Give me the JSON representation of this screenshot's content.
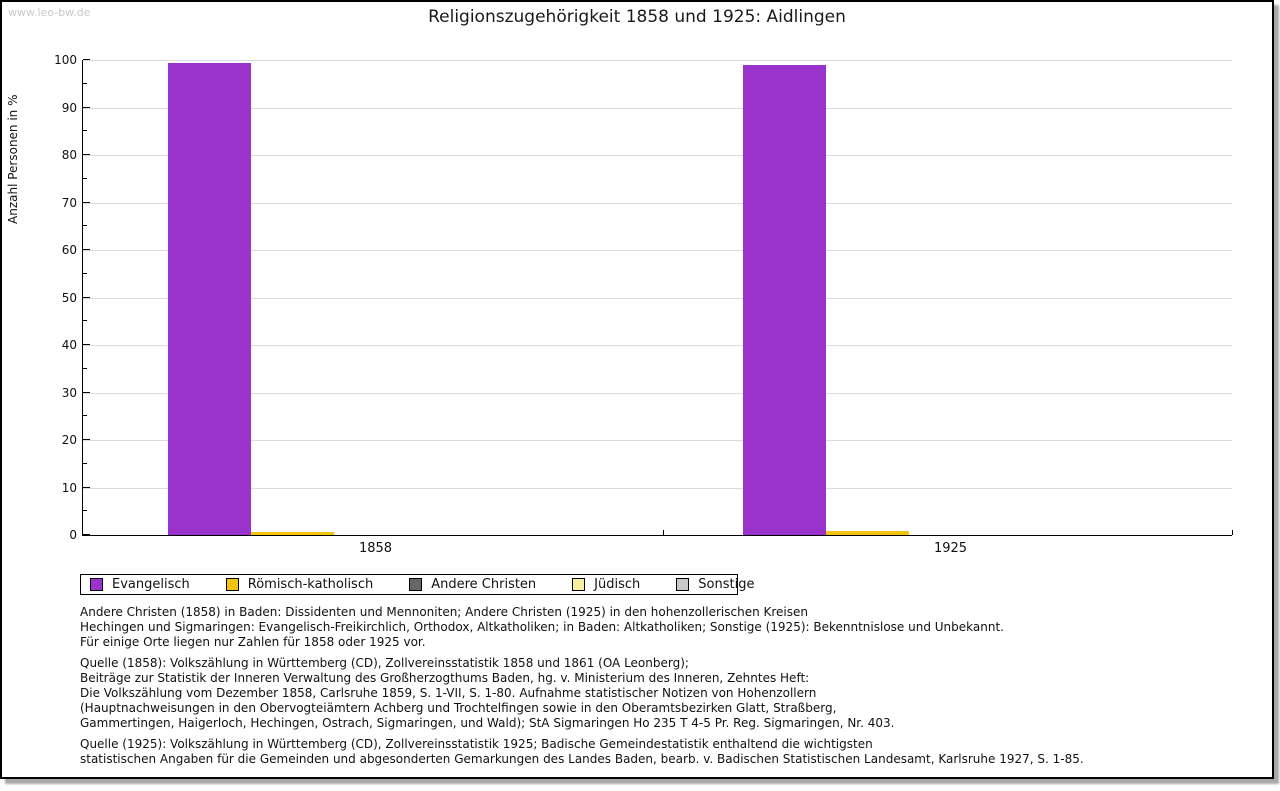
{
  "watermark": "www.leo-bw.de",
  "title": "Religionszugehörigkeit 1858 und 1925: Aidlingen",
  "chart_data": {
    "type": "bar",
    "title": "Religionszugehörigkeit 1858 und 1925: Aidlingen",
    "categories": [
      "1858",
      "1925"
    ],
    "series": [
      {
        "name": "Evangelisch",
        "color": "#9933cc",
        "values": [
          99.3,
          98.9
        ]
      },
      {
        "name": "Römisch-katholisch",
        "color": "#f2c40f",
        "values": [
          0.7,
          0.9
        ]
      },
      {
        "name": "Andere Christen",
        "color": "#666666",
        "values": [
          0,
          0
        ]
      },
      {
        "name": "Jüdisch",
        "color": "#f8f0a0",
        "values": [
          0,
          0
        ]
      },
      {
        "name": "Sonstige",
        "color": "#c8c8c8",
        "values": [
          0,
          0
        ]
      }
    ],
    "xlabel": "",
    "ylabel": "Anzahl Personen in %",
    "ylim": [
      0,
      100
    ],
    "ytick_step": 10,
    "ytick_minor_step": 5,
    "grid": true,
    "legend_position": "bottom-left"
  },
  "footnotes": {
    "note": "Andere Christen (1858) in Baden: Dissidenten und Mennoniten; Andere Christen (1925) in den hohenzollerischen Kreisen\nHechingen und Sigmaringen: Evangelisch-Freikirchlich, Orthodox, Altkatholiken; in Baden: Altkatholiken; Sonstige (1925): Bekenntnislose und Unbekannt.\nFür einige Orte liegen nur Zahlen für 1858 oder 1925 vor.",
    "source_1858": "Quelle (1858): Volkszählung in Württemberg (CD), Zollvereinsstatistik 1858 und 1861 (OA Leonberg);\nBeiträge zur Statistik der Inneren Verwaltung des Großherzogthums Baden, hg. v. Ministerium des Inneren, Zehntes Heft:\nDie Volkszählung vom Dezember 1858, Carlsruhe 1859, S. 1-VII, S. 1-80. Aufnahme statistischer Notizen von Hohenzollern\n(Hauptnachweisungen in den Obervogteiämtern Achberg und Trochtelfingen sowie in den Oberamtsbezirken Glatt, Straßberg,\nGammertingen, Haigerloch, Hechingen, Ostrach, Sigmaringen, und Wald); StA Sigmaringen Ho 235 T 4-5 Pr. Reg. Sigmaringen, Nr. 403.",
    "source_1925": "Quelle (1925): Volkszählung in Württemberg (CD), Zollvereinsstatistik 1925; Badische Gemeindestatistik enthaltend die wichtigsten\nstatistischen Angaben für die Gemeinden und abgesonderten Gemarkungen des Landes Baden, bearb. v. Badischen Statistischen Landesamt, Karlsruhe 1927, S. 1-85."
  }
}
